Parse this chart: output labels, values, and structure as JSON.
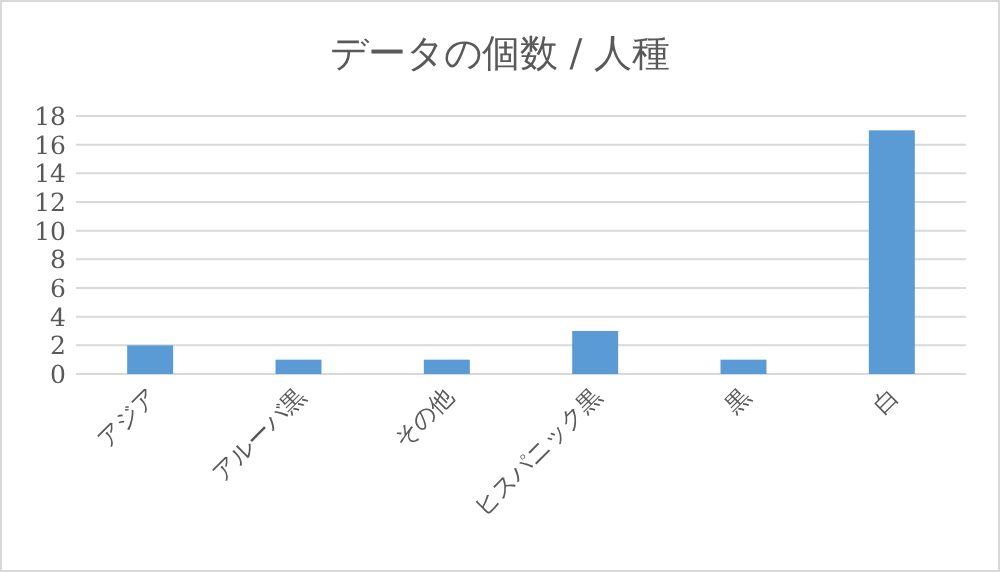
{
  "chart_data": {
    "type": "bar",
    "title": "データの個数 / 人種",
    "categories": [
      "アジア",
      "アルーバ黒",
      "その他",
      "ヒスパニック黒",
      "黒",
      "白"
    ],
    "values": [
      2,
      1,
      1,
      3,
      1,
      17
    ],
    "color": "#5b9bd5",
    "ylim": [
      0,
      18
    ],
    "yticks": [
      0,
      2,
      4,
      6,
      8,
      10,
      12,
      14,
      16,
      18
    ],
    "grid": "y"
  }
}
